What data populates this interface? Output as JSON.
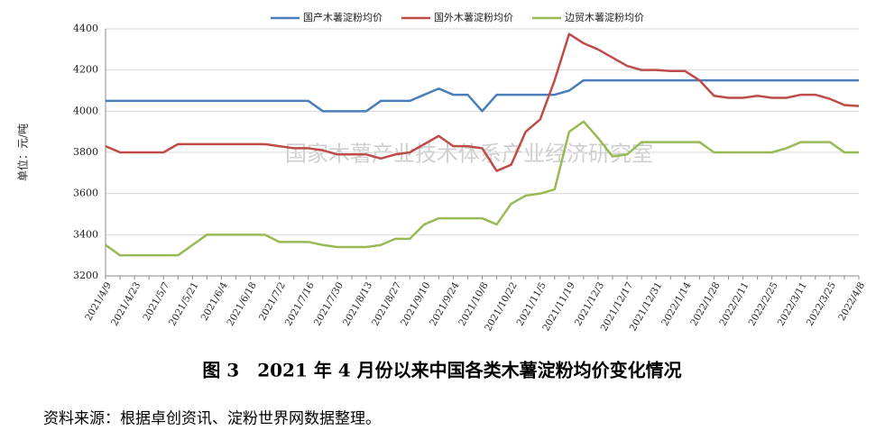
{
  "chart_data": {
    "type": "line",
    "y_label": "单位：元/吨",
    "watermark": "国家木薯产业技术体系产业经济研究室",
    "categories": [
      "2021/4/9",
      null,
      "2021/4/23",
      null,
      "2021/5/7",
      null,
      "2021/5/21",
      null,
      "2021/6/4",
      null,
      "2021/6/18",
      null,
      "2021/7/2",
      null,
      "2021/7/16",
      null,
      "2021/7/30",
      null,
      "2021/8/13",
      null,
      "2021/8/27",
      null,
      "2021/9/10",
      null,
      "2021/9/24",
      null,
      "2021/10/8",
      null,
      "2021/10/22",
      null,
      "2021/11/5",
      null,
      "2021/11/19",
      null,
      "2021/12/3",
      null,
      "2021/12/17",
      null,
      "2021/12/31",
      null,
      "2022/1/14",
      null,
      "2022/1/28",
      null,
      "2022/2/11",
      null,
      "2022/2/25",
      null,
      "2022/3/11",
      null,
      "2022/3/25",
      null,
      "2022/4/8"
    ],
    "series": [
      {
        "name": "国产木薯淀粉均价",
        "color": "#4a7ebb",
        "values": [
          4050,
          4050,
          4050,
          4050,
          4050,
          4050,
          4050,
          4050,
          4050,
          4050,
          4050,
          4050,
          4050,
          4050,
          4050,
          4000,
          4000,
          4000,
          4000,
          4050,
          4050,
          4050,
          4080,
          4110,
          4080,
          4080,
          4000,
          4080,
          4080,
          4080,
          4080,
          4080,
          4100,
          4150,
          4150,
          4150,
          4150,
          4150,
          4150,
          4150,
          4150,
          4150,
          4150,
          4150,
          4150,
          4150,
          4150,
          4150,
          4150,
          4150,
          4150,
          4150,
          4150
        ]
      },
      {
        "name": "国外木薯淀粉均价",
        "color": "#be4b48",
        "values": [
          3830,
          3800,
          3800,
          3800,
          3800,
          3840,
          3840,
          3840,
          3840,
          3840,
          3840,
          3840,
          3830,
          3820,
          3820,
          3810,
          3790,
          3790,
          3790,
          3770,
          3790,
          3800,
          3840,
          3880,
          3830,
          3830,
          3820,
          3710,
          3740,
          3900,
          3960,
          4150,
          4375,
          4330,
          4300,
          4260,
          4220,
          4200,
          4200,
          4195,
          4195,
          4150,
          4075,
          4065,
          4065,
          4075,
          4065,
          4065,
          4080,
          4080,
          4060,
          4030,
          4025
        ]
      },
      {
        "name": "边贸木薯淀粉均价",
        "color": "#98b954",
        "values": [
          3350,
          3300,
          3300,
          3300,
          3300,
          3300,
          3350,
          3400,
          3400,
          3400,
          3400,
          3400,
          3365,
          3365,
          3365,
          3350,
          3340,
          3340,
          3340,
          3350,
          3380,
          3380,
          3450,
          3480,
          3480,
          3480,
          3480,
          3450,
          3550,
          3590,
          3600,
          3620,
          3900,
          3950,
          3870,
          3780,
          3790,
          3850,
          3850,
          3850,
          3850,
          3850,
          3800,
          3800,
          3800,
          3800,
          3800,
          3820,
          3850,
          3850,
          3850,
          3800,
          3800
        ]
      }
    ],
    "ylim": [
      3200,
      4400
    ],
    "yticks": [
      3200,
      3400,
      3600,
      3800,
      4000,
      4200,
      4400
    ],
    "grid": true,
    "legend": "top"
  },
  "caption": "图 3　2021 年 4 月份以来中国各类木薯淀粉均价变化情况",
  "source": "资料来源：根据卓创资讯、淀粉世界网数据整理。"
}
